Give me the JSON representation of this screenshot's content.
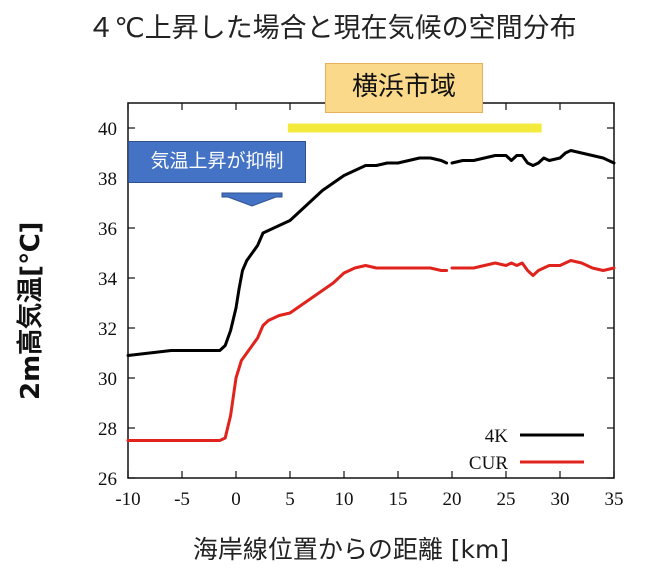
{
  "title": "４℃上昇した場合と現在気候の空間分布",
  "chart_data": {
    "type": "line",
    "xlabel": "海岸線位置からの距離 [km]",
    "ylabel": "2m高気温[℃]",
    "xlim": [
      -10,
      35
    ],
    "ylim": [
      26,
      41
    ],
    "xticks": [
      "-10",
      "-5",
      "0",
      "5",
      "10",
      "15",
      "20",
      "25",
      "30",
      "35"
    ],
    "yticks": [
      "26",
      "28",
      "30",
      "32",
      "34",
      "36",
      "38",
      "40"
    ],
    "grid": false,
    "legend_position": "bottom-right",
    "series": [
      {
        "name": "4K",
        "color": "#000000",
        "segments": [
          [
            [
              -10,
              30.9
            ],
            [
              -8,
              31.0
            ],
            [
              -6,
              31.1
            ],
            [
              -4,
              31.1
            ],
            [
              -2,
              31.1
            ],
            [
              -1.5,
              31.1
            ],
            [
              -1,
              31.3
            ],
            [
              -0.5,
              31.9
            ],
            [
              0,
              32.8
            ],
            [
              0.3,
              33.6
            ],
            [
              0.6,
              34.3
            ],
            [
              1,
              34.7
            ],
            [
              1.5,
              35.0
            ],
            [
              2,
              35.3
            ],
            [
              2.5,
              35.8
            ],
            [
              3,
              35.9
            ],
            [
              3.5,
              36.0
            ],
            [
              4,
              36.1
            ],
            [
              5,
              36.3
            ],
            [
              6,
              36.7
            ],
            [
              7,
              37.1
            ],
            [
              8,
              37.5
            ],
            [
              9,
              37.8
            ],
            [
              10,
              38.1
            ],
            [
              11,
              38.3
            ],
            [
              12,
              38.5
            ],
            [
              13,
              38.5
            ],
            [
              14,
              38.6
            ],
            [
              15,
              38.6
            ],
            [
              16,
              38.7
            ],
            [
              17,
              38.8
            ],
            [
              18,
              38.8
            ],
            [
              19,
              38.7
            ],
            [
              19.5,
              38.6
            ]
          ],
          [
            [
              20,
              38.6
            ],
            [
              21,
              38.7
            ],
            [
              22,
              38.7
            ],
            [
              23,
              38.8
            ],
            [
              24,
              38.9
            ],
            [
              25,
              38.9
            ],
            [
              25.5,
              38.7
            ],
            [
              26,
              38.9
            ],
            [
              26.5,
              38.9
            ],
            [
              27,
              38.6
            ],
            [
              27.5,
              38.5
            ],
            [
              28,
              38.6
            ],
            [
              28.5,
              38.8
            ],
            [
              29,
              38.7
            ],
            [
              30,
              38.8
            ],
            [
              30.5,
              39.0
            ],
            [
              31,
              39.1
            ],
            [
              32,
              39.0
            ],
            [
              33,
              38.9
            ],
            [
              34,
              38.8
            ],
            [
              35,
              38.6
            ]
          ]
        ]
      },
      {
        "name": "CUR",
        "color": "#e0231c",
        "segments": [
          [
            [
              -10,
              27.5
            ],
            [
              -8,
              27.5
            ],
            [
              -6,
              27.5
            ],
            [
              -4,
              27.5
            ],
            [
              -2,
              27.5
            ],
            [
              -1.5,
              27.5
            ],
            [
              -1,
              27.6
            ],
            [
              -0.5,
              28.5
            ],
            [
              0,
              30.0
            ],
            [
              0.5,
              30.7
            ],
            [
              1,
              31.0
            ],
            [
              1.5,
              31.3
            ],
            [
              2,
              31.6
            ],
            [
              2.5,
              32.1
            ],
            [
              3,
              32.3
            ],
            [
              3.5,
              32.4
            ],
            [
              4,
              32.5
            ],
            [
              5,
              32.6
            ],
            [
              6,
              32.9
            ],
            [
              7,
              33.2
            ],
            [
              8,
              33.5
            ],
            [
              9,
              33.8
            ],
            [
              10,
              34.2
            ],
            [
              11,
              34.4
            ],
            [
              12,
              34.5
            ],
            [
              13,
              34.4
            ],
            [
              14,
              34.4
            ],
            [
              15,
              34.4
            ],
            [
              16,
              34.4
            ],
            [
              17,
              34.4
            ],
            [
              18,
              34.4
            ],
            [
              19,
              34.3
            ],
            [
              19.5,
              34.3
            ]
          ],
          [
            [
              20,
              34.4
            ],
            [
              21,
              34.4
            ],
            [
              22,
              34.4
            ],
            [
              23,
              34.5
            ],
            [
              24,
              34.6
            ],
            [
              25,
              34.5
            ],
            [
              25.5,
              34.6
            ],
            [
              26,
              34.5
            ],
            [
              26.5,
              34.6
            ],
            [
              27,
              34.3
            ],
            [
              27.5,
              34.1
            ],
            [
              28,
              34.3
            ],
            [
              28.5,
              34.4
            ],
            [
              29,
              34.5
            ],
            [
              30,
              34.5
            ],
            [
              31,
              34.7
            ],
            [
              32,
              34.6
            ],
            [
              33,
              34.4
            ],
            [
              34,
              34.3
            ],
            [
              35,
              34.4
            ]
          ]
        ]
      }
    ],
    "annotations": {
      "region_label": "横浜市域",
      "region_bar": {
        "x_start": 4.8,
        "x_end": 28.3,
        "y": 40,
        "color": "#f3ea3b"
      },
      "box_label": "気温上昇が抑制",
      "arrow_color": "#4472c4"
    }
  }
}
